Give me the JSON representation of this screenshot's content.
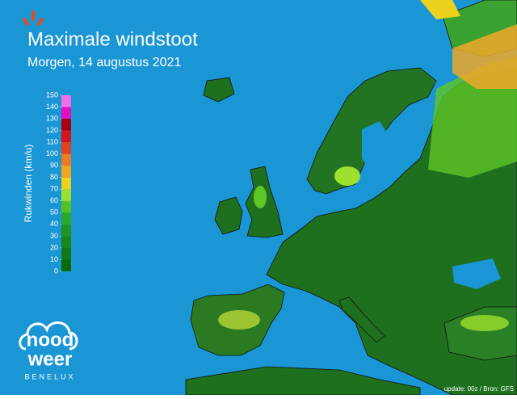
{
  "header": {
    "title": "Maximale windstoot",
    "subtitle": "Morgen, 14 augustus 2021"
  },
  "legend": {
    "label": "Rukwinden (km/u)",
    "ticks": [
      0,
      10,
      20,
      30,
      40,
      50,
      60,
      70,
      80,
      90,
      100,
      110,
      120,
      130,
      140,
      150
    ],
    "colors": [
      "#0a6a0a",
      "#127812",
      "#1a861a",
      "#229422",
      "#2aa82a",
      "#55c222",
      "#9ee02e",
      "#ecd21c",
      "#f2a51e",
      "#ee7a22",
      "#e4421e",
      "#d4141a",
      "#a80010",
      "#e010c0",
      "#f070e8",
      "#f8b8f4"
    ]
  },
  "logo": {
    "line1": "nood",
    "line2": "weer",
    "tagline": "BENELUX"
  },
  "footer": {
    "source": "update: 00z / Bron: GFS"
  }
}
